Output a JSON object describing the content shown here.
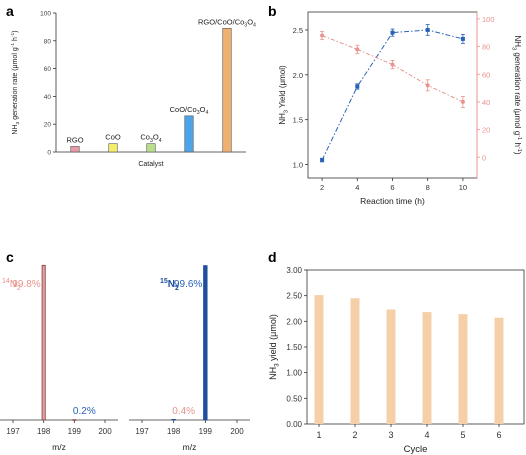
{
  "figure": {
    "colors": {
      "axis": "#333333",
      "blue": "#2a62b8",
      "pink": "#e8938e",
      "peach": "#f5cfa8",
      "red_text": "#e8938e"
    }
  },
  "chart_data": [
    {
      "panel": "a",
      "type": "bar",
      "categories": [
        "RGO",
        "CoO",
        "Co3O4",
        "CoO/Co3O4",
        "RGO/CoO/Co3O4"
      ],
      "category_labels": [
        {
          "parts": [
            [
              "RGO",
              "n"
            ]
          ]
        },
        {
          "parts": [
            [
              "CoO",
              "n"
            ]
          ]
        },
        {
          "parts": [
            [
              "Co",
              "n"
            ],
            [
              "3",
              "sub"
            ],
            [
              "O",
              "n"
            ],
            [
              "4",
              "sub"
            ]
          ]
        },
        {
          "parts": [
            [
              "CoO/Co",
              "n"
            ],
            [
              "3",
              "sub"
            ],
            [
              "O",
              "n"
            ],
            [
              "4",
              "sub"
            ]
          ]
        },
        {
          "parts": [
            [
              "RGO/CoO/Co",
              "n"
            ],
            [
              "3",
              "sub"
            ],
            [
              "O",
              "n"
            ],
            [
              "4",
              "sub"
            ]
          ]
        }
      ],
      "values": [
        4,
        6,
        6,
        26,
        89
      ],
      "bar_colors": [
        "#e89aa6",
        "#f5ee6a",
        "#b8e08a",
        "#4fa3e8",
        "#f0b070"
      ],
      "xlabel": "Catalyst",
      "ylabel_parts": [
        [
          "NH",
          "n"
        ],
        [
          "3",
          "sub"
        ],
        [
          " generation rate (μmol g",
          "n"
        ],
        [
          "-1",
          "sup"
        ],
        [
          " h",
          "n"
        ],
        [
          "-1",
          "sup"
        ],
        [
          ")",
          "n"
        ]
      ],
      "ylim": [
        0,
        100
      ],
      "yticks": [
        0,
        20,
        40,
        60,
        80,
        100
      ]
    },
    {
      "panel": "b",
      "type": "line",
      "x": [
        2,
        4,
        6,
        8,
        10
      ],
      "xlabel": "Reaction time (h)",
      "xticks": [
        2,
        4,
        6,
        8,
        10
      ],
      "xlim": [
        1.2,
        10.8
      ],
      "series": [
        {
          "axis": "left",
          "values": [
            1.05,
            1.87,
            2.47,
            2.5,
            2.4
          ],
          "errors": [
            0.02,
            0.03,
            0.04,
            0.06,
            0.05
          ]
        },
        {
          "axis": "right",
          "values": [
            88,
            78,
            67,
            52,
            40
          ],
          "errors": [
            3,
            3,
            3,
            4,
            4
          ]
        }
      ],
      "ylabel_left_parts": [
        [
          "NH",
          "n"
        ],
        [
          "3",
          "sub"
        ],
        [
          " Yield (μmol)",
          "n"
        ]
      ],
      "ylabel_right_parts": [
        [
          "NH",
          "n"
        ],
        [
          "3",
          "sub"
        ],
        [
          " generation rate (μmol g",
          "n"
        ],
        [
          "-1",
          "sup"
        ],
        [
          " h",
          "n"
        ],
        [
          "-1",
          "sup"
        ],
        [
          ")",
          "n"
        ]
      ],
      "ylim_left": [
        0.85,
        2.7
      ],
      "yticks_left": [
        1.0,
        1.5,
        2.0,
        2.5
      ],
      "ylim_right": [
        -15,
        105
      ],
      "yticks_right": [
        0,
        20,
        40,
        60,
        80,
        100
      ]
    },
    {
      "panel": "c",
      "type": "bar",
      "subplots": [
        {
          "title_parts": [
            [
              "14",
              "sup"
            ],
            [
              "N",
              "n"
            ],
            [
              "2",
              "sub"
            ]
          ],
          "categories": [
            "197",
            "198",
            "199",
            "200"
          ],
          "values": [
            0,
            99.8,
            0.2,
            0
          ],
          "labels": [
            {
              "category": "198",
              "text": "99.8%"
            },
            {
              "category": "199",
              "text": "0.2%"
            }
          ]
        },
        {
          "title_parts": [
            [
              "15",
              "sup"
            ],
            [
              "N",
              "n"
            ],
            [
              "2",
              "sub"
            ]
          ],
          "categories": [
            "197",
            "198",
            "199",
            "200"
          ],
          "values": [
            0,
            0.4,
            99.6,
            0
          ],
          "labels": [
            {
              "category": "198",
              "text": "0.4%"
            },
            {
              "category": "199",
              "text": "99.6%"
            }
          ]
        }
      ],
      "xlabel": "m/z"
    },
    {
      "panel": "d",
      "type": "bar",
      "categories": [
        "1",
        "2",
        "3",
        "4",
        "5",
        "6"
      ],
      "values": [
        2.51,
        2.45,
        2.23,
        2.18,
        2.14,
        2.07
      ],
      "xlabel": "Cycle",
      "ylabel_parts": [
        [
          "NH",
          "n"
        ],
        [
          "3",
          "sub"
        ],
        [
          " yield (μmol)",
          "n"
        ]
      ],
      "ylim": [
        0,
        3.0
      ],
      "yticks": [
        0.0,
        0.5,
        1.0,
        1.5,
        2.0,
        2.5,
        3.0
      ]
    }
  ],
  "panel_letters": [
    "a",
    "b",
    "c",
    "d"
  ]
}
